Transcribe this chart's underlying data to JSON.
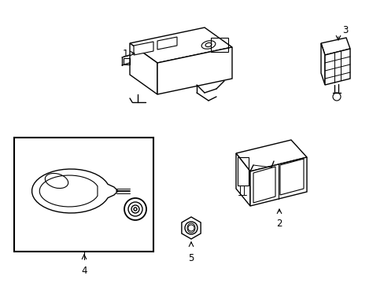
{
  "background_color": "#ffffff",
  "line_color": "#000000",
  "line_width": 1.0,
  "label_fontsize": 8.5,
  "figsize": [
    4.89,
    3.6
  ],
  "dpi": 100
}
